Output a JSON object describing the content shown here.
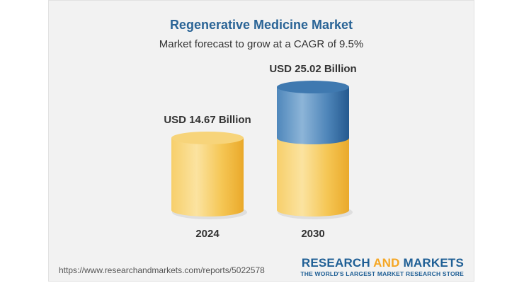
{
  "header": {
    "title": "Regenerative Medicine Market",
    "subtitle": "Market forecast to grow at a CAGR of 9.5%"
  },
  "chart_data": {
    "type": "bar",
    "title": "Regenerative Medicine Market",
    "subtitle": "Market forecast to grow at a CAGR of 9.5%",
    "categories": [
      "2024",
      "2030"
    ],
    "values": [
      14.67,
      25.02
    ],
    "data_labels": [
      "USD 14.67 Billion",
      "USD 25.02 Billion"
    ],
    "unit": "USD Billion",
    "style": "3d-cylinder",
    "colors": {
      "base": "#f5c14a",
      "growth": "#2f6aa3"
    }
  },
  "footer": {
    "url": "https://www.researchandmarkets.com/reports/5022578",
    "brand_part1": "RESEARCH ",
    "brand_part2": "AND",
    "brand_part3": " MARKETS",
    "tagline": "THE WORLD'S LARGEST MARKET RESEARCH STORE"
  }
}
